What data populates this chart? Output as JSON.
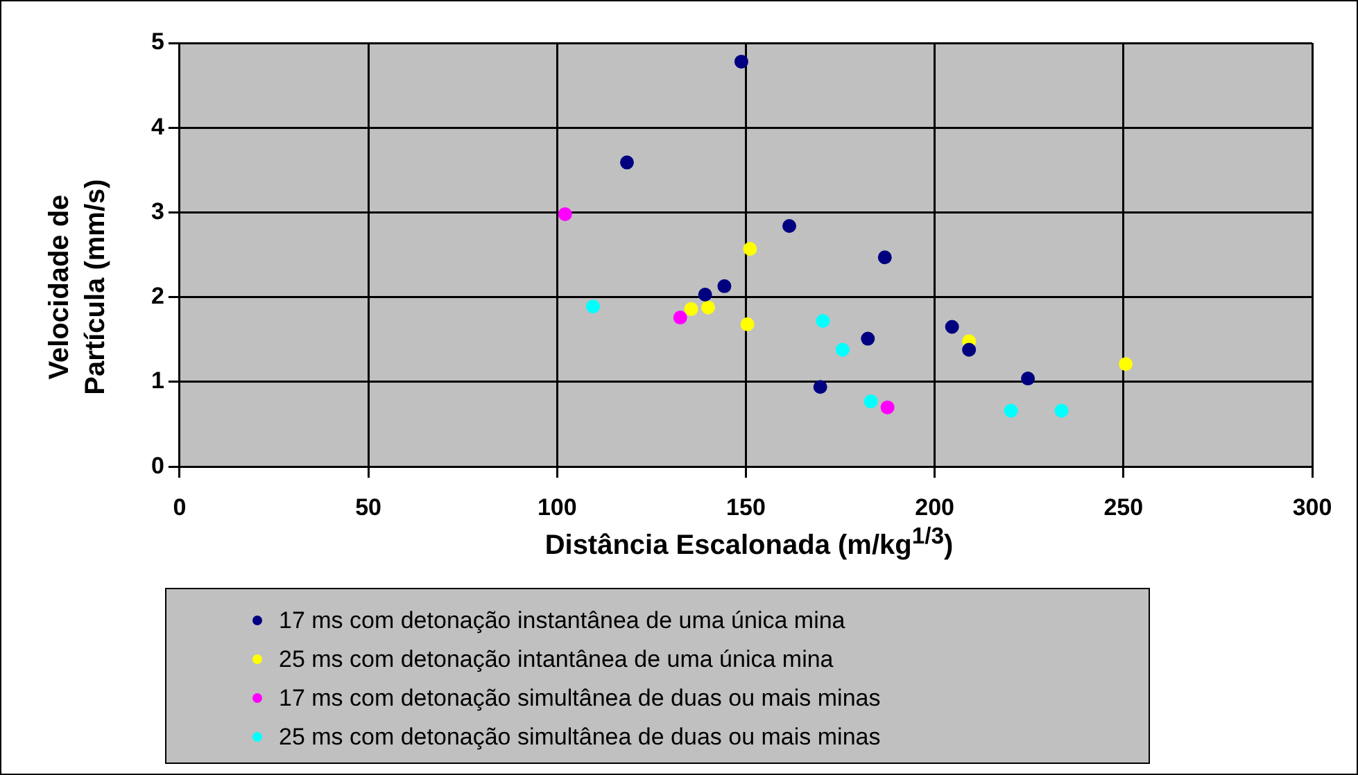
{
  "chart_data": {
    "type": "scatter",
    "xlabel": "Distância Escalonada (m/kg$^{1/3}$)",
    "ylabel": "Velocidade de Partícula (mm/s)",
    "xlim": [
      0,
      300
    ],
    "xticks": [
      0,
      50,
      100,
      150,
      200,
      250,
      300
    ],
    "ylim": [
      0,
      5
    ],
    "yticks": [
      0,
      1,
      2,
      3,
      4,
      5
    ],
    "grid": true,
    "legend": "bottom",
    "marker": "circle",
    "series": [
      {
        "name": "17 ms com detonação instantânea de uma única mina",
        "color": "#000080",
        "x": [
          148.8,
          118.5,
          139.2,
          144.3,
          161.5,
          186.8,
          182.3,
          169.7,
          204.6,
          209.1,
          224.7
        ],
        "values": [
          4.78,
          3.59,
          2.03,
          2.13,
          2.84,
          2.47,
          1.51,
          0.94,
          1.65,
          1.38,
          1.04
        ]
      },
      {
        "name": "25 ms com detonação intantânea de uma única mina",
        "color": "#ffff00",
        "x": [
          135.5,
          140,
          151.1,
          150.4,
          209.1,
          250.6
        ],
        "values": [
          1.86,
          1.88,
          2.57,
          1.68,
          1.48,
          1.21
        ]
      },
      {
        "name": "17 ms com detonação simultânea de duas ou mais minas",
        "color": "#ff00ff",
        "x": [
          102.1,
          132.6,
          187.5
        ],
        "values": [
          2.98,
          1.76,
          0.7
        ]
      },
      {
        "name": "25 ms com detonação simultânea de duas ou mais minas",
        "color": "#00ffff",
        "x": [
          109.5,
          170.4,
          175.6,
          183.1,
          220.2,
          233.6
        ],
        "values": [
          1.89,
          1.72,
          1.38,
          0.77,
          0.66,
          0.66
        ]
      }
    ]
  }
}
